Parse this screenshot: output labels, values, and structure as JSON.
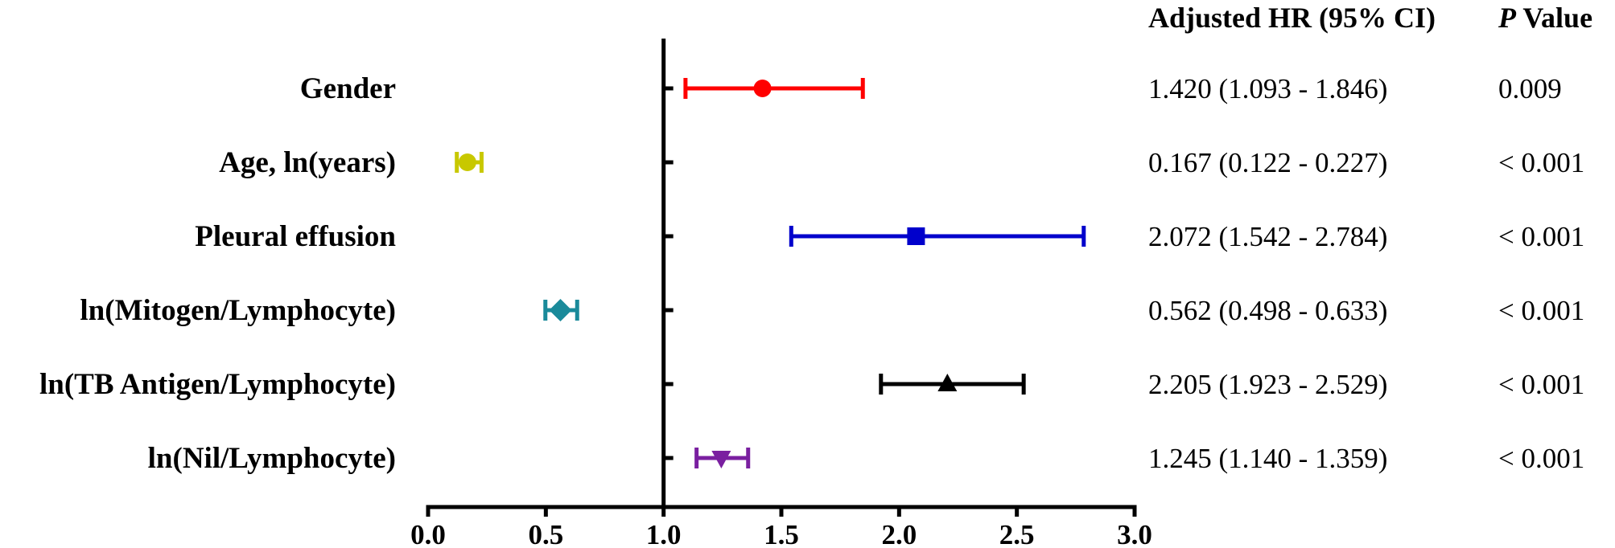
{
  "chart_data": {
    "type": "forest",
    "reference_line": 1.0,
    "xlim": [
      0.0,
      3.0
    ],
    "x_ticks": [
      "0.0",
      "0.5",
      "1.0",
      "1.5",
      "2.0",
      "2.5",
      "3.0"
    ],
    "grid": false,
    "columns": {
      "hr_header": "Adjusted HR (95% CI)",
      "p_header_italic": "P",
      "p_header_rest": " Value"
    },
    "rows": [
      {
        "label": "Gender",
        "hr": 1.42,
        "lo": 1.093,
        "hi": 1.846,
        "hr_text": "1.420 (1.093 - 1.846)",
        "p_text": "0.009",
        "color": "#ff0000",
        "marker": "circle"
      },
      {
        "label": "Age, ln(years)",
        "hr": 0.167,
        "lo": 0.122,
        "hi": 0.227,
        "hr_text": "0.167 (0.122 - 0.227)",
        "p_text": "< 0.001",
        "color": "#c8c800",
        "marker": "circle"
      },
      {
        "label": "Pleural effusion",
        "hr": 2.072,
        "lo": 1.542,
        "hi": 2.784,
        "hr_text": "2.072 (1.542 - 2.784)",
        "p_text": "< 0.001",
        "color": "#0000cc",
        "marker": "square"
      },
      {
        "label": "ln(Mitogen/Lymphocyte)",
        "hr": 0.562,
        "lo": 0.498,
        "hi": 0.633,
        "hr_text": "0.562 (0.498 - 0.633)",
        "p_text": "< 0.001",
        "color": "#1a8a9a",
        "marker": "diamond"
      },
      {
        "label": "ln(TB Antigen/Lymphocyte)",
        "hr": 2.205,
        "lo": 1.923,
        "hi": 2.529,
        "hr_text": "2.205 (1.923 - 2.529)",
        "p_text": "< 0.001",
        "color": "#000000",
        "marker": "triangle-up"
      },
      {
        "label": "ln(Nil/Lymphocyte)",
        "hr": 1.245,
        "lo": 1.14,
        "hi": 1.359,
        "hr_text": "1.245 (1.140 - 1.359)",
        "p_text": "< 0.001",
        "color": "#7a1fa0",
        "marker": "triangle-down"
      }
    ]
  }
}
